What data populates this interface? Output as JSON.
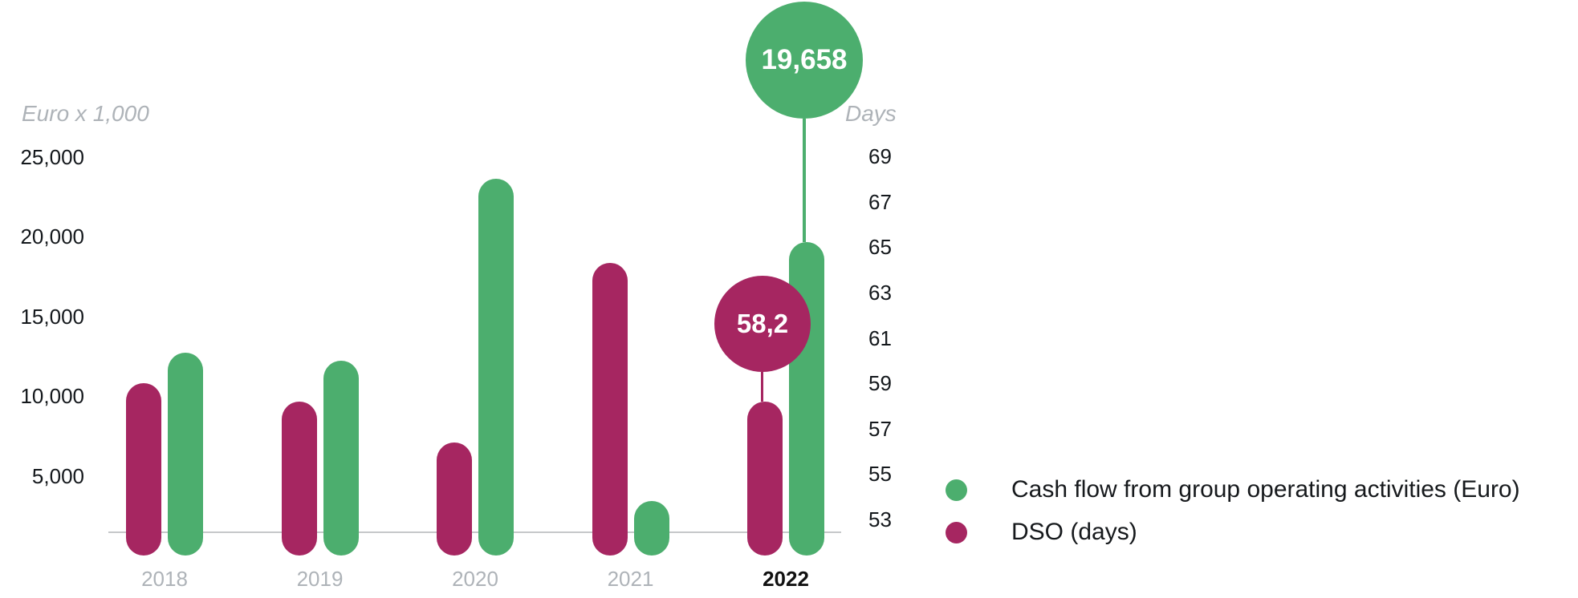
{
  "colors": {
    "background": "#FFFFFF",
    "green": "#4CAE6E",
    "crimson": "#A62661",
    "axis_line": "#C6C8CA",
    "muted_label": "#AEB3B8",
    "tick_text": "#14181C",
    "legend_text": "#16191C",
    "bubble_text": "#FFFFFF",
    "highlight_year_text": "#111111"
  },
  "chart_data": {
    "type": "bar",
    "title": "",
    "categories": [
      "2018",
      "2019",
      "2020",
      "2021",
      "2022"
    ],
    "series": [
      {
        "name": "Cash flow from group operating activities (Euro)",
        "axis": "left",
        "color": "#4CAE6E",
        "values": [
          12700,
          12200,
          23600,
          3400,
          19658
        ]
      },
      {
        "name": "DSO (days)",
        "axis": "right",
        "color": "#A62661",
        "values": [
          59.0,
          58.2,
          56.4,
          64.3,
          58.2
        ]
      }
    ],
    "left_axis": {
      "title": "Euro x 1,000",
      "tick_labels": [
        "25,000",
        "20,000",
        "15,000",
        "10,000",
        "5,000"
      ],
      "tick_values": [
        25000,
        20000,
        15000,
        10000,
        5000
      ],
      "range": [
        0,
        25000
      ]
    },
    "right_axis": {
      "title": "Days",
      "tick_labels": [
        "69",
        "67",
        "65",
        "63",
        "61",
        "59",
        "57",
        "55",
        "53"
      ],
      "tick_values": [
        69,
        67,
        65,
        63,
        61,
        59,
        57,
        55,
        53
      ],
      "range": [
        52,
        69
      ]
    },
    "annotations": {
      "cashflow_2022": {
        "label": "19,658",
        "value": 19658,
        "series": "Cash flow from group operating activities (Euro)",
        "category": "2022"
      },
      "dso_2022": {
        "label": "58,2",
        "value": 58.2,
        "series": "DSO (days)",
        "category": "2022"
      }
    },
    "highlighted_category": "2022",
    "grid": "off",
    "legend": {
      "position": "right",
      "items": [
        {
          "label": "Cash flow from group operating activities (Euro)",
          "color": "#4CAE6E"
        },
        {
          "label": "DSO (days)",
          "color": "#A62661"
        }
      ]
    }
  }
}
